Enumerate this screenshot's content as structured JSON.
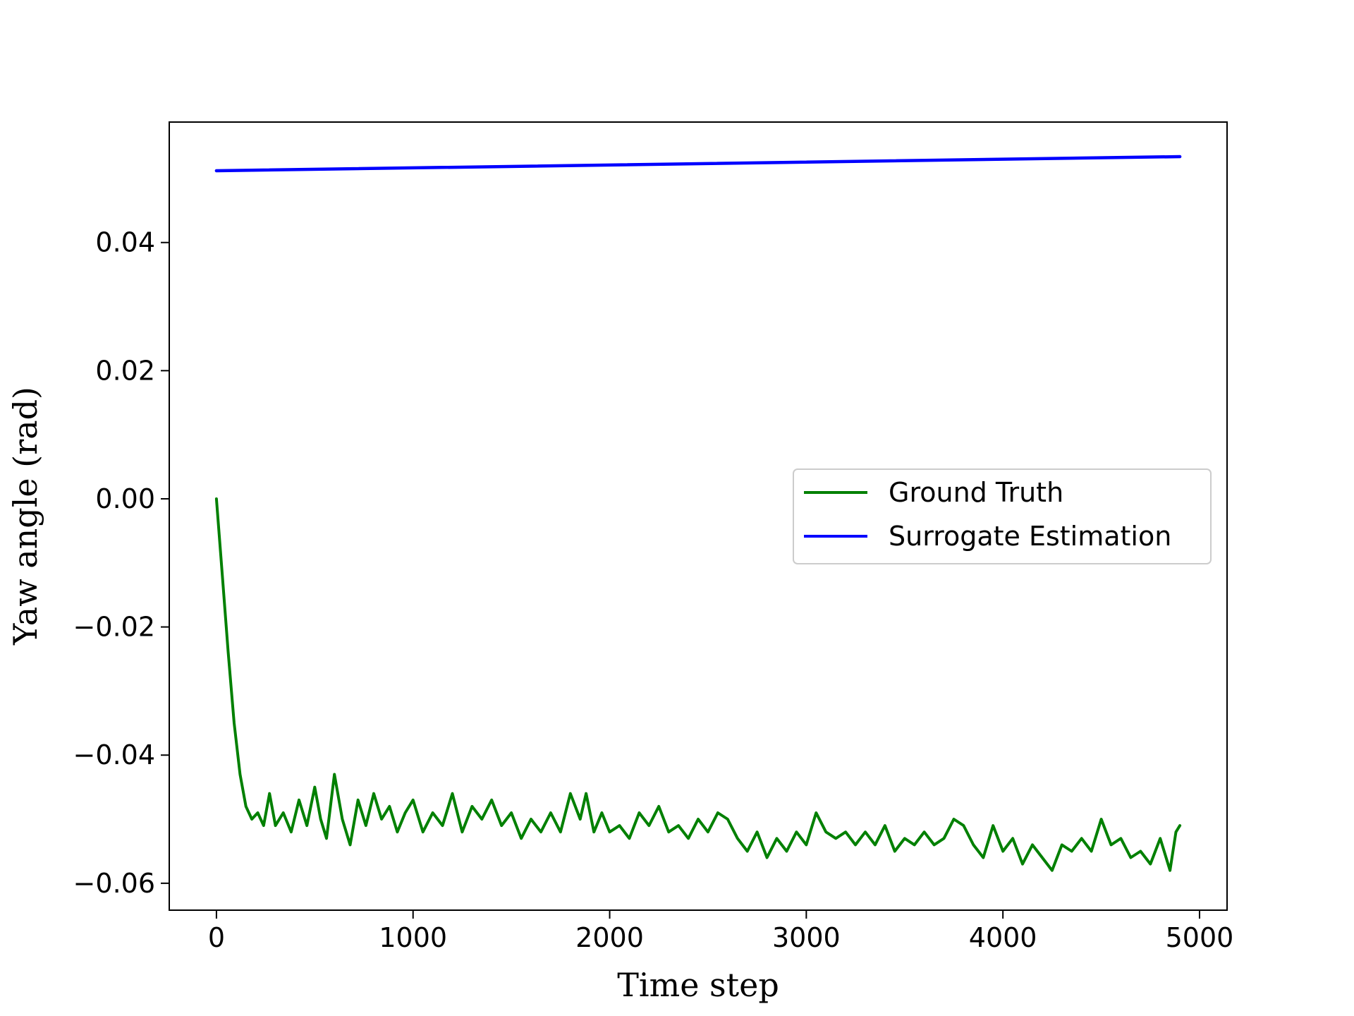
{
  "chart_data": {
    "type": "line",
    "xlabel": "Time step",
    "ylabel": "Yaw angle (rad)",
    "xlim": [
      -240,
      5140
    ],
    "ylim": [
      -0.0642,
      0.0588
    ],
    "xticks": [
      0,
      1000,
      2000,
      3000,
      4000,
      5000
    ],
    "xtick_labels": [
      "0",
      "1000",
      "2000",
      "3000",
      "4000",
      "5000"
    ],
    "yticks": [
      -0.06,
      -0.04,
      -0.02,
      0.0,
      0.02,
      0.04
    ],
    "ytick_labels": [
      "−0.06",
      "−0.04",
      "−0.02",
      "0.00",
      "0.02",
      "0.04"
    ],
    "grid": false,
    "legend_position": "center-right",
    "series": [
      {
        "name": "Ground Truth",
        "color": "#008000",
        "x": [
          0,
          30,
          60,
          90,
          120,
          150,
          180,
          210,
          240,
          270,
          300,
          340,
          380,
          420,
          460,
          500,
          530,
          560,
          600,
          640,
          680,
          720,
          760,
          800,
          840,
          880,
          920,
          960,
          1000,
          1050,
          1100,
          1150,
          1200,
          1250,
          1300,
          1350,
          1400,
          1450,
          1500,
          1550,
          1600,
          1650,
          1700,
          1750,
          1800,
          1850,
          1880,
          1920,
          1960,
          2000,
          2050,
          2100,
          2150,
          2200,
          2250,
          2300,
          2350,
          2400,
          2450,
          2500,
          2550,
          2600,
          2650,
          2700,
          2750,
          2800,
          2850,
          2900,
          2950,
          3000,
          3050,
          3100,
          3150,
          3200,
          3250,
          3300,
          3350,
          3400,
          3450,
          3500,
          3550,
          3600,
          3650,
          3700,
          3750,
          3800,
          3850,
          3900,
          3950,
          4000,
          4050,
          4100,
          4150,
          4200,
          4250,
          4300,
          4350,
          4400,
          4450,
          4500,
          4550,
          4600,
          4650,
          4700,
          4750,
          4800,
          4850,
          4880,
          4900
        ],
        "y": [
          0.0,
          -0.012,
          -0.024,
          -0.035,
          -0.043,
          -0.048,
          -0.05,
          -0.049,
          -0.051,
          -0.046,
          -0.051,
          -0.049,
          -0.052,
          -0.047,
          -0.051,
          -0.045,
          -0.05,
          -0.053,
          -0.043,
          -0.05,
          -0.054,
          -0.047,
          -0.051,
          -0.046,
          -0.05,
          -0.048,
          -0.052,
          -0.049,
          -0.047,
          -0.052,
          -0.049,
          -0.051,
          -0.046,
          -0.052,
          -0.048,
          -0.05,
          -0.047,
          -0.051,
          -0.049,
          -0.053,
          -0.05,
          -0.052,
          -0.049,
          -0.052,
          -0.046,
          -0.05,
          -0.046,
          -0.052,
          -0.049,
          -0.052,
          -0.051,
          -0.053,
          -0.049,
          -0.051,
          -0.048,
          -0.052,
          -0.051,
          -0.053,
          -0.05,
          -0.052,
          -0.049,
          -0.05,
          -0.053,
          -0.055,
          -0.052,
          -0.056,
          -0.053,
          -0.055,
          -0.052,
          -0.054,
          -0.049,
          -0.052,
          -0.053,
          -0.052,
          -0.054,
          -0.052,
          -0.054,
          -0.051,
          -0.055,
          -0.053,
          -0.054,
          -0.052,
          -0.054,
          -0.053,
          -0.05,
          -0.051,
          -0.054,
          -0.056,
          -0.051,
          -0.055,
          -0.053,
          -0.057,
          -0.054,
          -0.056,
          -0.058,
          -0.054,
          -0.055,
          -0.053,
          -0.055,
          -0.05,
          -0.054,
          -0.053,
          -0.056,
          -0.055,
          -0.057,
          -0.053,
          -0.058,
          -0.052,
          -0.051
        ]
      },
      {
        "name": "Surrogate Estimation",
        "color": "#0000ff",
        "x": [
          0,
          4900
        ],
        "y": [
          0.0512,
          0.0534
        ]
      }
    ]
  }
}
